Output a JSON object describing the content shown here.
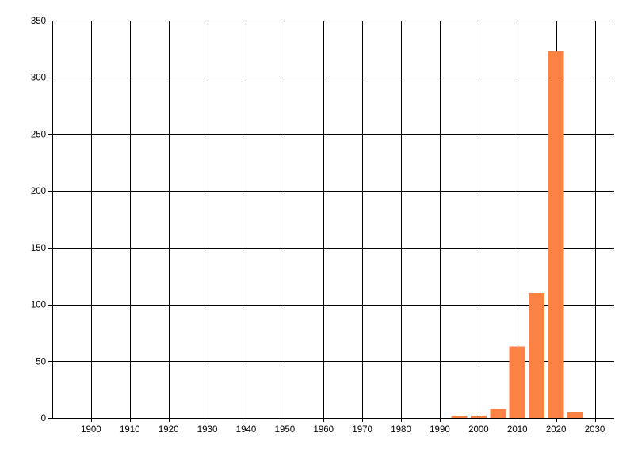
{
  "chart_data": {
    "type": "bar",
    "title": "",
    "xlabel": "",
    "ylabel": "",
    "x": [
      1995,
      2000,
      2005,
      2010,
      2015,
      2020,
      2025
    ],
    "values": [
      2,
      2,
      8,
      63,
      110,
      323,
      5
    ],
    "xlim": [
      1890,
      2035
    ],
    "ylim": [
      0,
      350
    ],
    "x_ticks": [
      1900,
      1910,
      1920,
      1930,
      1940,
      1950,
      1960,
      1970,
      1980,
      1990,
      2000,
      2010,
      2020,
      2030
    ],
    "x_tick_labels": [
      "1900",
      "1910",
      "1920",
      "1930",
      "1940",
      "1950",
      "1960",
      "1970",
      "1980",
      "1990",
      "2000",
      "2010",
      "2020",
      "2030"
    ],
    "y_ticks": [
      0,
      50,
      100,
      150,
      200,
      250,
      300,
      350
    ],
    "y_tick_labels": [
      "0",
      "50",
      "100",
      "150",
      "200",
      "250",
      "300",
      "350"
    ],
    "bar_width_years": 4.1,
    "grid": true,
    "legend": false,
    "colors": {
      "bar": "#fc8144",
      "grid": "#000000",
      "axis": "#000000",
      "text": "#000000",
      "background": "#ffffff"
    }
  }
}
